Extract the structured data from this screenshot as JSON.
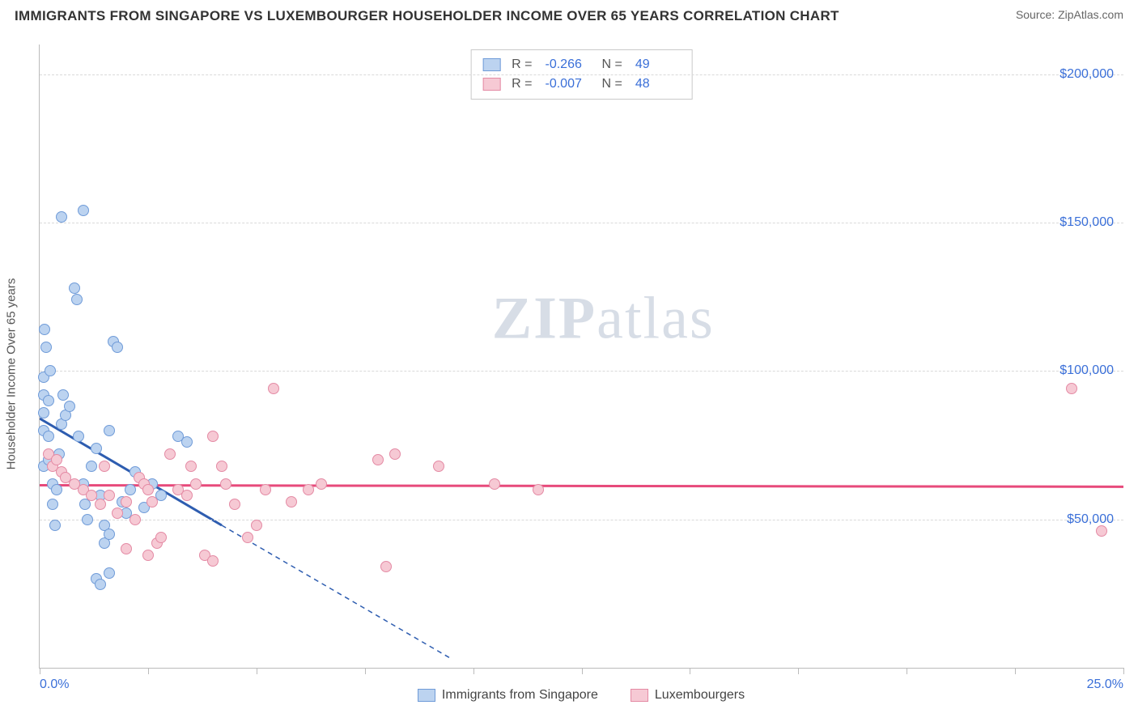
{
  "header": {
    "title": "IMMIGRANTS FROM SINGAPORE VS LUXEMBOURGER HOUSEHOLDER INCOME OVER 65 YEARS CORRELATION CHART",
    "source": "Source: ZipAtlas.com"
  },
  "watermark": {
    "a": "ZIP",
    "b": "atlas"
  },
  "chart": {
    "type": "scatter",
    "ylabel": "Householder Income Over 65 years",
    "background_color": "#ffffff",
    "grid_color": "#d9d9d9",
    "axis_color": "#bbbbbb",
    "tick_label_color": "#3a6fd8",
    "xlim": [
      0,
      25
    ],
    "ylim": [
      0,
      210000
    ],
    "xticks": [
      0,
      2.5,
      5,
      7.5,
      10,
      12.5,
      15,
      17.5,
      20,
      22.5,
      25
    ],
    "xtick_labels": {
      "0": "0.0%",
      "25": "25.0%"
    },
    "yticks": [
      50000,
      100000,
      150000,
      200000
    ],
    "ytick_labels": [
      "$50,000",
      "$100,000",
      "$150,000",
      "$200,000"
    ],
    "point_radius": 7,
    "series": [
      {
        "key": "singapore",
        "label": "Immigrants from Singapore",
        "fill": "#bcd3f0",
        "stroke": "#6f9bd8",
        "line_color": "#2e5db0",
        "R": "-0.266",
        "N": "49",
        "regression": {
          "x1": 0,
          "y1": 84000,
          "x2": 4.2,
          "y2": 48000,
          "x2_ext": 9.5,
          "y2_ext": 3000
        },
        "points": [
          [
            0.1,
            68000
          ],
          [
            0.1,
            80000
          ],
          [
            0.1,
            86000
          ],
          [
            0.1,
            92000
          ],
          [
            0.1,
            98000
          ],
          [
            0.15,
            108000
          ],
          [
            0.12,
            114000
          ],
          [
            0.2,
            70000
          ],
          [
            0.2,
            78000
          ],
          [
            0.2,
            90000
          ],
          [
            0.25,
            100000
          ],
          [
            0.3,
            62000
          ],
          [
            0.3,
            55000
          ],
          [
            0.35,
            48000
          ],
          [
            0.4,
            60000
          ],
          [
            0.45,
            72000
          ],
          [
            0.5,
            82000
          ],
          [
            0.55,
            92000
          ],
          [
            0.6,
            85000
          ],
          [
            0.7,
            88000
          ],
          [
            0.8,
            128000
          ],
          [
            0.85,
            124000
          ],
          [
            0.9,
            78000
          ],
          [
            1.0,
            62000
          ],
          [
            1.05,
            55000
          ],
          [
            1.1,
            50000
          ],
          [
            1.2,
            68000
          ],
          [
            1.3,
            74000
          ],
          [
            1.4,
            58000
          ],
          [
            1.5,
            48000
          ],
          [
            1.5,
            42000
          ],
          [
            1.6,
            45000
          ],
          [
            1.6,
            80000
          ],
          [
            1.7,
            110000
          ],
          [
            1.8,
            108000
          ],
          [
            1.0,
            154000
          ],
          [
            0.5,
            152000
          ],
          [
            1.9,
            56000
          ],
          [
            2.0,
            52000
          ],
          [
            2.1,
            60000
          ],
          [
            2.2,
            66000
          ],
          [
            2.4,
            54000
          ],
          [
            2.6,
            62000
          ],
          [
            2.8,
            58000
          ],
          [
            3.2,
            78000
          ],
          [
            3.4,
            76000
          ],
          [
            1.3,
            30000
          ],
          [
            1.4,
            28000
          ],
          [
            1.6,
            32000
          ]
        ]
      },
      {
        "key": "luxembourg",
        "label": "Luxembourgers",
        "fill": "#f6c9d4",
        "stroke": "#e48aa4",
        "line_color": "#e74a7b",
        "R": "-0.007",
        "N": "48",
        "regression": {
          "x1": 0,
          "y1": 61500,
          "x2": 25,
          "y2": 61000
        },
        "points": [
          [
            0.2,
            72000
          ],
          [
            0.3,
            68000
          ],
          [
            0.4,
            70000
          ],
          [
            0.5,
            66000
          ],
          [
            0.6,
            64000
          ],
          [
            0.8,
            62000
          ],
          [
            1.0,
            60000
          ],
          [
            1.2,
            58000
          ],
          [
            1.4,
            55000
          ],
          [
            1.5,
            68000
          ],
          [
            1.6,
            58000
          ],
          [
            1.8,
            52000
          ],
          [
            2.0,
            56000
          ],
          [
            2.2,
            50000
          ],
          [
            2.3,
            64000
          ],
          [
            2.4,
            62000
          ],
          [
            2.5,
            60000
          ],
          [
            2.6,
            56000
          ],
          [
            2.7,
            42000
          ],
          [
            2.8,
            44000
          ],
          [
            3.0,
            72000
          ],
          [
            3.2,
            60000
          ],
          [
            3.4,
            58000
          ],
          [
            3.5,
            68000
          ],
          [
            3.6,
            62000
          ],
          [
            3.8,
            38000
          ],
          [
            4.0,
            78000
          ],
          [
            4.0,
            36000
          ],
          [
            4.2,
            68000
          ],
          [
            4.3,
            62000
          ],
          [
            4.5,
            55000
          ],
          [
            4.8,
            44000
          ],
          [
            5.0,
            48000
          ],
          [
            5.2,
            60000
          ],
          [
            5.4,
            94000
          ],
          [
            5.8,
            56000
          ],
          [
            6.2,
            60000
          ],
          [
            6.5,
            62000
          ],
          [
            7.8,
            70000
          ],
          [
            8.0,
            34000
          ],
          [
            8.2,
            72000
          ],
          [
            9.2,
            68000
          ],
          [
            10.5,
            62000
          ],
          [
            11.5,
            60000
          ],
          [
            23.8,
            94000
          ],
          [
            24.5,
            46000
          ],
          [
            2.0,
            40000
          ],
          [
            2.5,
            38000
          ]
        ]
      }
    ]
  },
  "legend_top": {
    "r_label": "R =",
    "n_label": "N ="
  }
}
